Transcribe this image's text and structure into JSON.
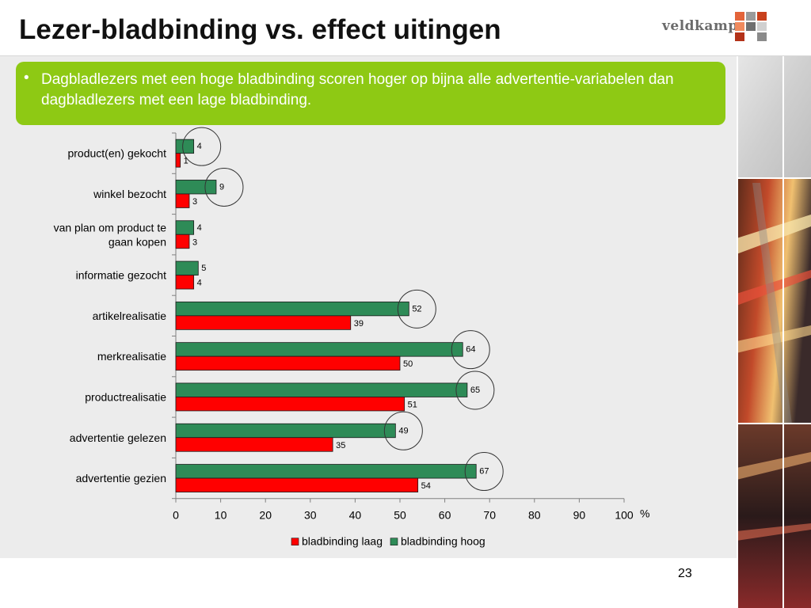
{
  "slide": {
    "title": "Lezer-bladbinding vs. effect uitingen",
    "page_number": "23",
    "bullet": "Dagbladlezers met een hoge bladbinding scoren hoger op bijna alle advertentie-variabelen dan dagbladlezers met een lage bladbinding."
  },
  "logo": {
    "text": "veldkamp",
    "colors": [
      "#e3643a",
      "#9a9a9a",
      "#c8401c",
      "#f08a5d",
      "#6f6f6f",
      "#d0d0d0",
      "#b33219",
      "#ffffff",
      "#8a8a8a"
    ]
  },
  "colors": {
    "callout_green": "#8ec914",
    "bar_laag": "#ff0000",
    "bar_hoog": "#2e8b57",
    "background_gray": "#ececec"
  },
  "chart_data": {
    "type": "bar",
    "orientation": "horizontal",
    "categories": [
      "product(en) gekocht",
      "winkel bezocht",
      "van plan om product te gaan kopen",
      "informatie gezocht",
      "artikelrealisatie",
      "merkrealisatie",
      "productrealisatie",
      "advertentie gelezen",
      "advertentie gezien"
    ],
    "category_lines": [
      [
        "product(en) gekocht"
      ],
      [
        "winkel bezocht"
      ],
      [
        "van plan om product te",
        "gaan kopen"
      ],
      [
        "informatie gezocht"
      ],
      [
        "artikelrealisatie"
      ],
      [
        "merkrealisatie"
      ],
      [
        "productrealisatie"
      ],
      [
        "advertentie gelezen"
      ],
      [
        "advertentie gezien"
      ]
    ],
    "series": [
      {
        "name": "bladbinding hoog",
        "color": "#2e8b57",
        "values": [
          4,
          9,
          4,
          5,
          52,
          64,
          65,
          49,
          67
        ]
      },
      {
        "name": "bladbinding laag",
        "color": "#ff0000",
        "values": [
          1,
          3,
          3,
          4,
          39,
          50,
          51,
          35,
          54
        ]
      }
    ],
    "legend_order": [
      "bladbinding laag",
      "bladbinding hoog"
    ],
    "legend_position": "bottom",
    "highlighted_hoog_categories": [
      0,
      1,
      4,
      5,
      6,
      7,
      8
    ],
    "xlim": [
      0,
      100
    ],
    "x_ticks": [
      0,
      10,
      20,
      30,
      40,
      50,
      60,
      70,
      80,
      90,
      100
    ],
    "x_unit": "%",
    "grid": false
  }
}
